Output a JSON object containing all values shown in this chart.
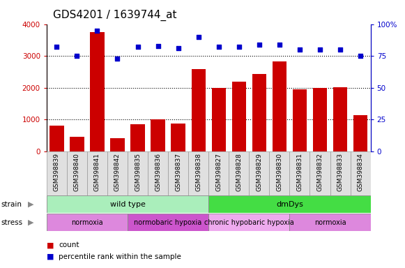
{
  "title": "GDS4201 / 1639744_at",
  "samples": [
    "GSM398839",
    "GSM398840",
    "GSM398841",
    "GSM398842",
    "GSM398835",
    "GSM398836",
    "GSM398837",
    "GSM398838",
    "GSM398827",
    "GSM398828",
    "GSM398829",
    "GSM398830",
    "GSM398831",
    "GSM398832",
    "GSM398833",
    "GSM398834"
  ],
  "counts": [
    820,
    470,
    3750,
    420,
    850,
    1000,
    880,
    2580,
    2000,
    2190,
    2430,
    2820,
    1940,
    2000,
    2010,
    1130
  ],
  "percentile_ranks": [
    82,
    75,
    95,
    73,
    82,
    83,
    81,
    90,
    82,
    82,
    84,
    84,
    80,
    80,
    80,
    75
  ],
  "ylim_left": [
    0,
    4000
  ],
  "ylim_right": [
    0,
    100
  ],
  "yticks_left": [
    0,
    1000,
    2000,
    3000,
    4000
  ],
  "yticks_right": [
    0,
    25,
    50,
    75,
    100
  ],
  "bar_color": "#cc0000",
  "dot_color": "#0000cc",
  "strain_groups": [
    {
      "label": "wild type",
      "start": 0,
      "end": 8,
      "color": "#aaeebb"
    },
    {
      "label": "dmDys",
      "start": 8,
      "end": 16,
      "color": "#44dd44"
    }
  ],
  "stress_groups": [
    {
      "label": "normoxia",
      "start": 0,
      "end": 4,
      "color": "#dd88dd"
    },
    {
      "label": "normobaric hypoxia",
      "start": 4,
      "end": 8,
      "color": "#cc55cc"
    },
    {
      "label": "chronic hypobaric hypoxia",
      "start": 8,
      "end": 12,
      "color": "#eeaaee"
    },
    {
      "label": "normoxia",
      "start": 12,
      "end": 16,
      "color": "#dd88dd"
    }
  ],
  "background_color": "#ffffff",
  "title_fontsize": 11,
  "bar_width": 0.7
}
